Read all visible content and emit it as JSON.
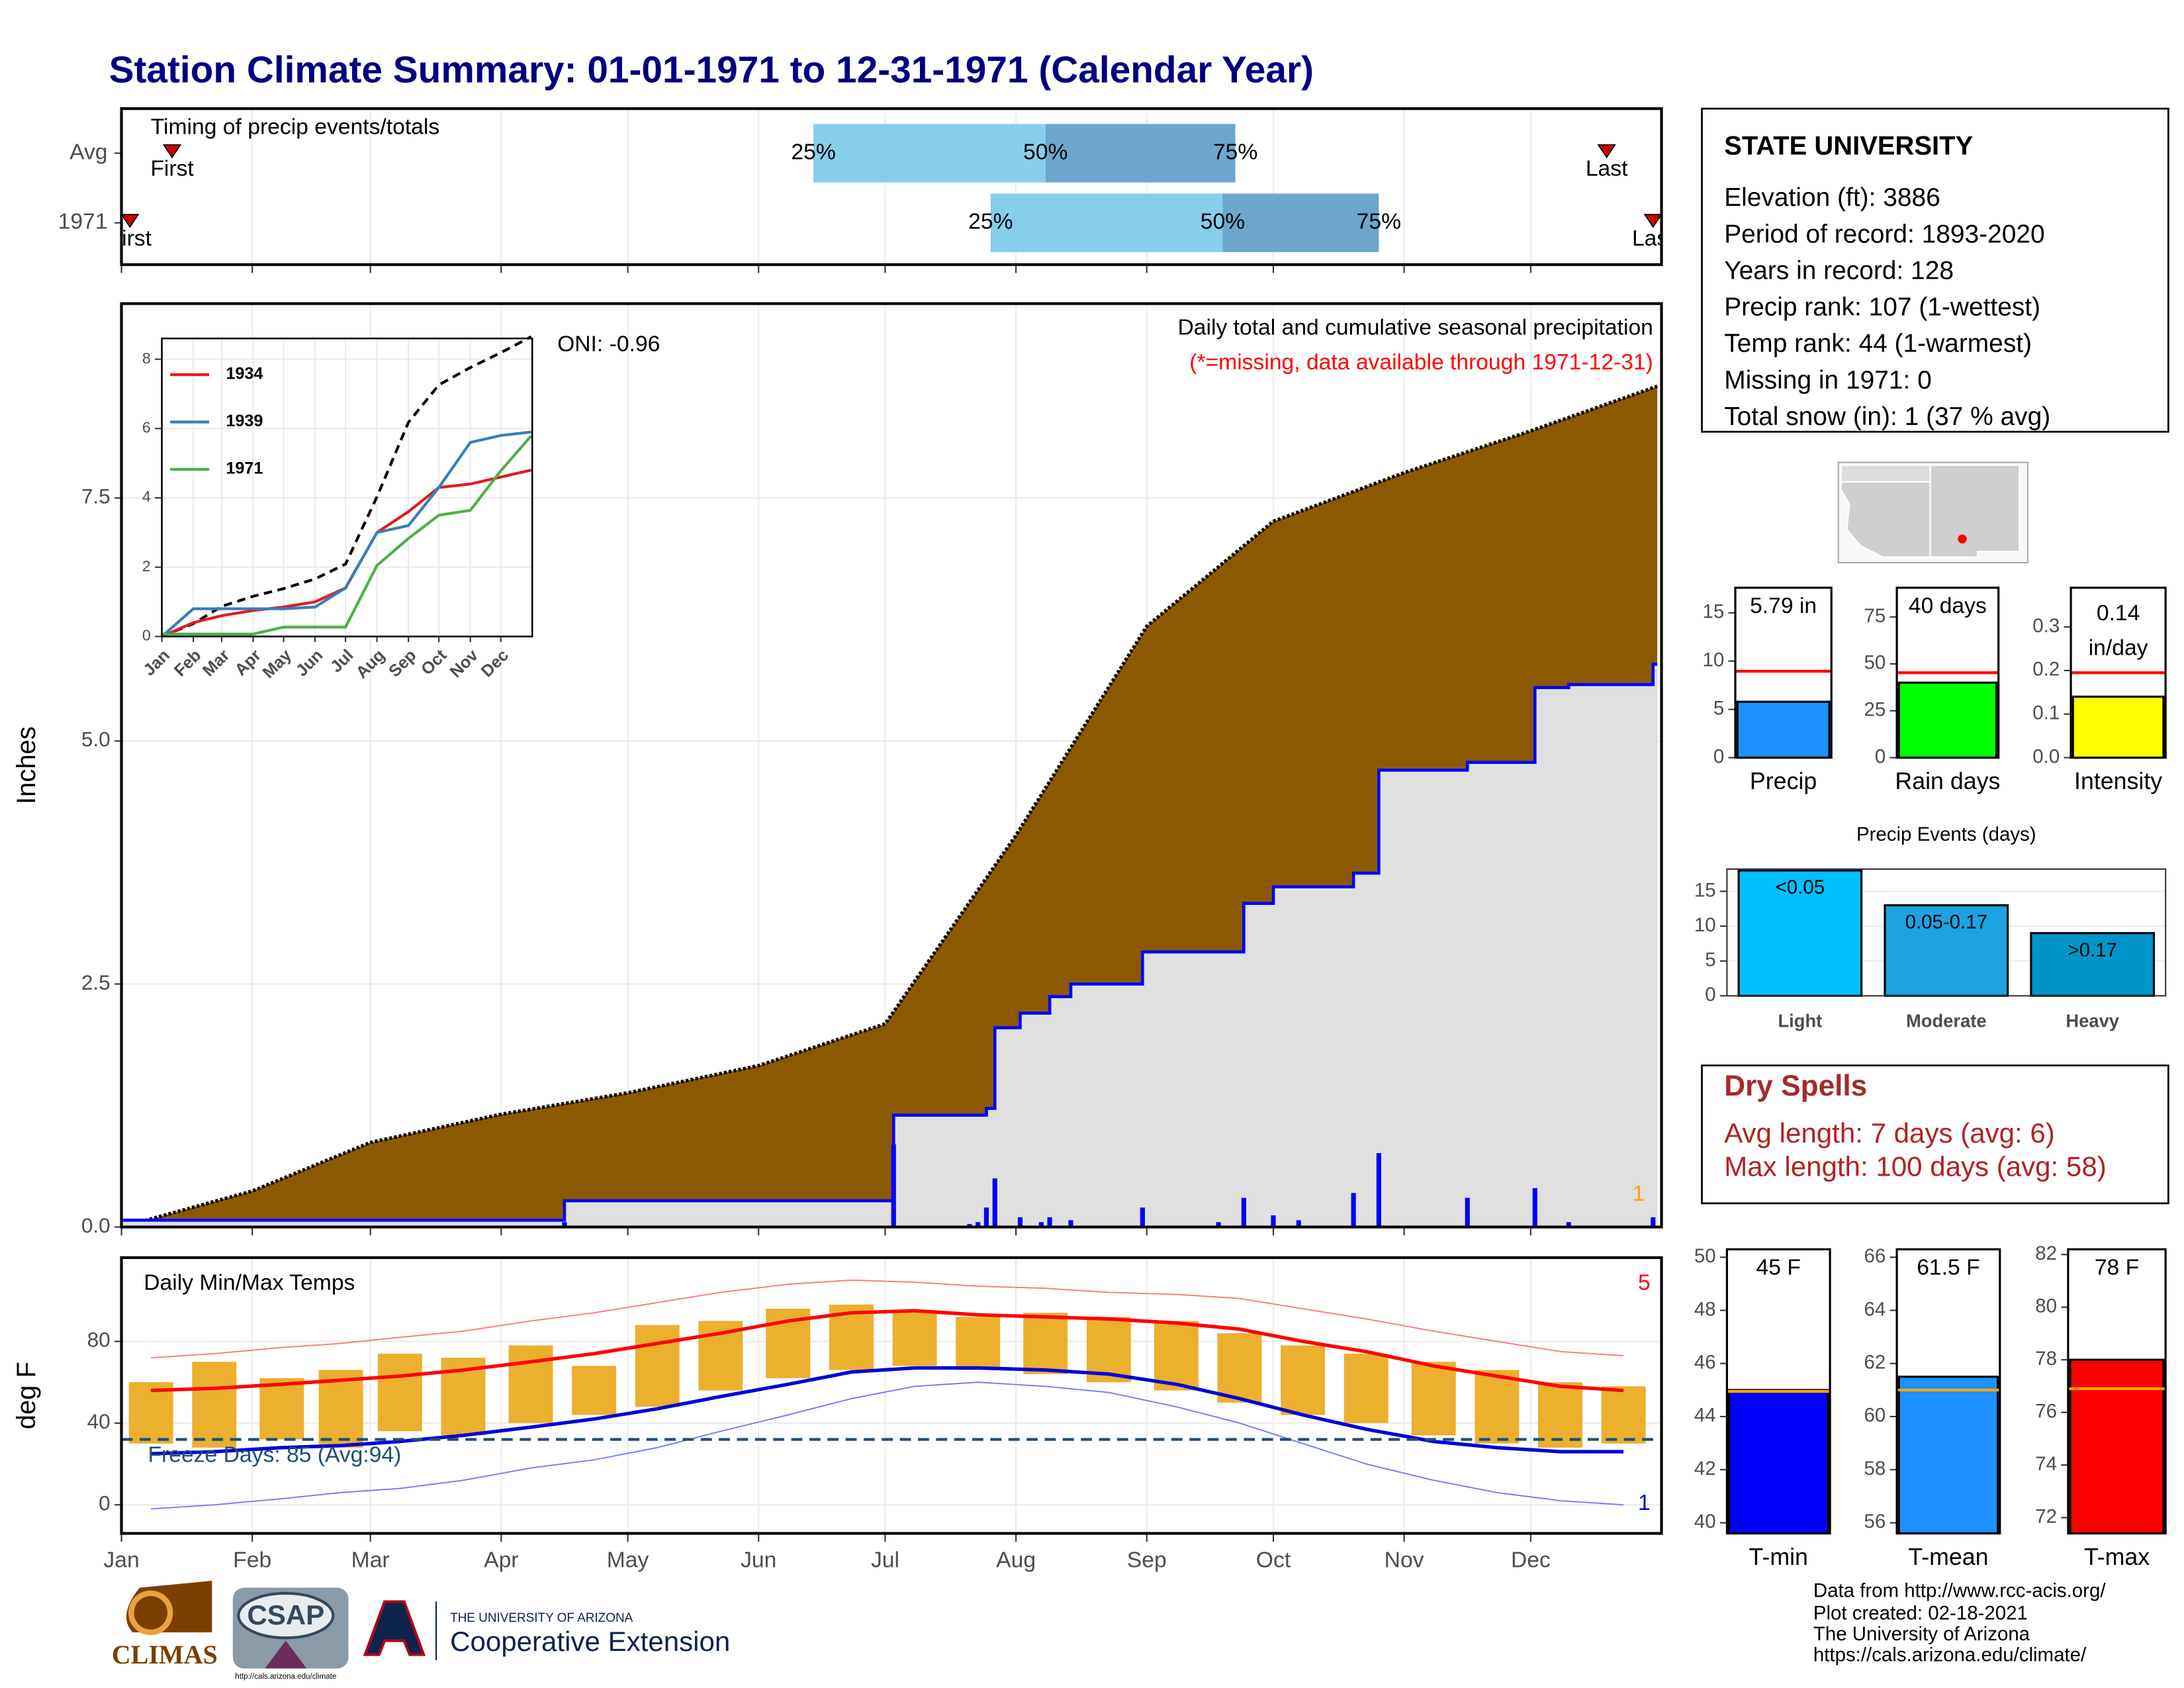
{
  "title": "Station Climate Summary: 01-01-1971 to 12-31-1971 (Calendar Year)",
  "station": {
    "name": "STATE UNIVERSITY",
    "lines": [
      "Elevation (ft): 3886",
      "Period of record: 1893-2020",
      "Years in record: 128",
      "Precip rank: 107 (1-wettest)",
      "Temp rank: 44 (1-warmest)",
      "Missing in 1971: 0",
      "Total snow (in): 1 (37 % avg)"
    ]
  },
  "dry_spells": {
    "title": "Dry Spells",
    "lines": [
      "Avg length: 7 days (avg: 6)",
      "Max length: 100 days (avg: 58)"
    ]
  },
  "footer": {
    "credits": [
      "Data from http://www.rcc-acis.org/",
      "Plot created: 02-18-2021",
      "The University of Arizona",
      "https://cals.arizona.edu/climate/"
    ],
    "logos": [
      "CLIMAS",
      "CSAP",
      "http://cals.arizona.edu/climate",
      "THE UNIVERSITY OF ARIZONA",
      "Cooperative Extension"
    ]
  },
  "chart_data": [
    {
      "type": "timing",
      "title": "Timing of precip events/totals",
      "rows": [
        {
          "name": "Avg",
          "first": 13,
          "q25": 165,
          "q50": 220,
          "q75": 265,
          "last": 353
        },
        {
          "name": "1971",
          "first": 3,
          "q25": 207,
          "q50": 262,
          "q75": 299,
          "last": 364
        }
      ],
      "quantile_labels": [
        "25%",
        "50%",
        "75%"
      ],
      "marker_labels": [
        "First",
        "Last"
      ],
      "colors": [
        "#87CEEB",
        "#6CA6CD",
        "#CC0000"
      ]
    },
    {
      "type": "area",
      "ylabel": "Inches",
      "ylim": [
        0,
        9.5
      ],
      "yticks": [
        {
          "value": 0,
          "label": "0.0"
        },
        2.5,
        {
          "value": 5,
          "label": "5.0"
        },
        7.5
      ],
      "title": "Daily total and cumulative seasonal precipitation",
      "subtitle": "(*=missing, data available through 1971-12-31)",
      "annotation": "ONI: -0.96",
      "record_days": 1,
      "average": {
        "x": [
          1,
          32,
          60,
          91,
          121,
          152,
          182,
          213,
          244,
          274,
          305,
          335,
          365
        ],
        "values": [
          0,
          0.37,
          0.87,
          1.16,
          1.38,
          1.66,
          2.09,
          4.03,
          6.18,
          7.26,
          7.76,
          8.19,
          8.65
        ],
        "color": "#8B5A00"
      },
      "observed": {
        "x": [
          1,
          106,
          106,
          184,
          184,
          206,
          206,
          208,
          208,
          214,
          214,
          221,
          221,
          226,
          226,
          243,
          243,
          267,
          267,
          274,
          274,
          293,
          293,
          299,
          299,
          320,
          320,
          336,
          336,
          344,
          344,
          364,
          364,
          365
        ],
        "values": [
          0.07,
          0.07,
          0.27,
          0.27,
          1.15,
          1.15,
          1.22,
          1.22,
          2.05,
          2.05,
          2.2,
          2.2,
          2.37,
          2.37,
          2.5,
          2.5,
          2.83,
          2.83,
          3.33,
          3.33,
          3.5,
          3.5,
          3.64,
          3.64,
          4.7,
          4.7,
          4.78,
          4.78,
          5.55,
          5.55,
          5.58,
          5.58,
          5.79,
          5.79
        ],
        "color": "#0000FF",
        "fill": "#E0E0E0"
      },
      "daily": {
        "x": [
          106,
          184,
          202,
          204,
          206,
          208,
          214,
          219,
          221,
          226,
          243,
          261,
          267,
          274,
          280,
          293,
          299,
          320,
          336,
          344,
          364
        ],
        "values": [
          0.05,
          0.85,
          0.03,
          0.05,
          0.2,
          0.5,
          0.1,
          0.05,
          0.1,
          0.07,
          0.2,
          0.05,
          0.3,
          0.12,
          0.07,
          0.35,
          0.76,
          0.3,
          0.4,
          0.05,
          0.1
        ],
        "color": "#0000FF"
      }
    },
    {
      "type": "line",
      "xlim": [
        1,
        366
      ],
      "ylim": [
        0,
        8.6
      ],
      "yticks": [
        0,
        2,
        4,
        6,
        8
      ],
      "xticks": [
        {
          "value": 1,
          "label": "Jan"
        },
        {
          "value": 32,
          "label": "Feb"
        },
        {
          "value": 60,
          "label": "Mar"
        },
        {
          "value": 91,
          "label": "Apr"
        },
        {
          "value": 121,
          "label": "May"
        },
        {
          "value": 152,
          "label": "Jun"
        },
        {
          "value": 182,
          "label": "Jul"
        },
        {
          "value": 213,
          "label": "Aug"
        },
        {
          "value": 244,
          "label": "Sep"
        },
        {
          "value": 274,
          "label": "Oct"
        },
        {
          "value": 305,
          "label": "Nov"
        },
        {
          "value": 335,
          "label": "Dec"
        }
      ],
      "x": [
        1,
        32,
        60,
        91,
        121,
        152,
        182,
        213,
        244,
        274,
        305,
        335,
        365
      ],
      "average": {
        "values": [
          0,
          0.37,
          0.87,
          1.16,
          1.38,
          1.66,
          2.09,
          4.03,
          6.18,
          7.26,
          7.76,
          8.19,
          8.65
        ],
        "color": "#000000"
      },
      "series": [
        {
          "name": "1934",
          "color": "#E41A1C",
          "values": [
            0,
            0.4,
            0.6,
            0.75,
            0.85,
            1.0,
            1.4,
            3.0,
            3.6,
            4.3,
            4.4,
            4.6,
            4.8
          ]
        },
        {
          "name": "1939",
          "color": "#377EB8",
          "values": [
            0,
            0.8,
            0.8,
            0.8,
            0.8,
            0.85,
            1.4,
            3.0,
            3.2,
            4.3,
            5.6,
            5.8,
            5.9
          ]
        },
        {
          "name": "1971",
          "color": "#4DAF4A",
          "values": [
            0.07,
            0.07,
            0.07,
            0.07,
            0.27,
            0.27,
            0.27,
            2.05,
            2.83,
            3.5,
            3.64,
            4.78,
            5.79
          ]
        }
      ]
    },
    {
      "type": "temperature",
      "title": "Daily Min/Max Temps",
      "ylabel": "deg F",
      "ylim": [
        -14,
        121
      ],
      "yticks": [
        0,
        40,
        80
      ],
      "xlim": [
        1,
        366
      ],
      "xticks": [
        {
          "value": 1,
          "label": "Jan"
        },
        {
          "value": 32,
          "label": "Feb"
        },
        {
          "value": 60,
          "label": "Mar"
        },
        {
          "value": 91,
          "label": "Apr"
        },
        {
          "value": 121,
          "label": "May"
        },
        {
          "value": 152,
          "label": "Jun"
        },
        {
          "value": 182,
          "label": "Jul"
        },
        {
          "value": 213,
          "label": "Aug"
        },
        {
          "value": 244,
          "label": "Sep"
        },
        {
          "value": 274,
          "label": "Oct"
        },
        {
          "value": 305,
          "label": "Nov"
        },
        {
          "value": 335,
          "label": "Dec"
        }
      ],
      "x": [
        8,
        23,
        39,
        53,
        67,
        82,
        98,
        113,
        128,
        143,
        159,
        174,
        189,
        204,
        220,
        235,
        251,
        266,
        281,
        296,
        312,
        327,
        342,
        357
      ],
      "normal_max": {
        "color": "#FF0000",
        "values": [
          56,
          57,
          59,
          61,
          63,
          66,
          70,
          74,
          79,
          84,
          90,
          94,
          95,
          93,
          92,
          91,
          89,
          86,
          80,
          75,
          68,
          63,
          58,
          56
        ]
      },
      "normal_min": {
        "color": "#0000DD",
        "values": [
          25,
          26,
          28,
          29,
          31,
          34,
          38,
          42,
          47,
          53,
          59,
          65,
          67,
          67,
          66,
          64,
          59,
          52,
          44,
          37,
          31,
          28,
          26,
          26
        ]
      },
      "record_max": {
        "color": "#FF7777",
        "values": [
          72,
          74,
          77,
          79,
          82,
          85,
          90,
          94,
          99,
          104,
          108,
          110,
          109,
          107,
          106,
          104,
          103,
          101,
          96,
          91,
          85,
          80,
          75,
          73
        ]
      },
      "record_min": {
        "color": "#7777FF",
        "values": [
          -2,
          0,
          3,
          6,
          8,
          12,
          18,
          22,
          28,
          36,
          44,
          52,
          58,
          60,
          58,
          55,
          48,
          40,
          30,
          20,
          12,
          6,
          2,
          0
        ]
      },
      "observed": {
        "color": "#EBB02D",
        "max": [
          60,
          70,
          62,
          66,
          74,
          72,
          78,
          68,
          88,
          90,
          96,
          98,
          94,
          92,
          94,
          92,
          90,
          84,
          78,
          74,
          70,
          66,
          60,
          58
        ],
        "min": [
          30,
          28,
          32,
          28,
          36,
          34,
          40,
          44,
          48,
          56,
          62,
          66,
          68,
          66,
          64,
          60,
          56,
          50,
          44,
          40,
          34,
          30,
          28,
          30
        ]
      },
      "freeze_line": {
        "value": 32,
        "label": "Freeze Days: 85 (Avg:94)",
        "color": "#1F4E79"
      },
      "record_high_days": 5,
      "record_low_days": 1
    },
    {
      "type": "bar",
      "categories": [
        "Precip"
      ],
      "values": [
        5.79
      ],
      "value_labels": [
        "5.79 in"
      ],
      "color": "#1E90FF",
      "average": 8.95,
      "average_color": "#FF0000",
      "ylim": [
        0,
        17.6
      ],
      "yticks": [
        0,
        5,
        10,
        15
      ]
    },
    {
      "type": "bar",
      "categories": [
        "Rain days"
      ],
      "values": [
        40
      ],
      "value_labels": [
        "40 days"
      ],
      "color": "#00FF00",
      "average": 45.3,
      "average_color": "#FF0000",
      "ylim": [
        0,
        90.6
      ],
      "yticks": [
        0,
        25,
        50,
        75
      ]
    },
    {
      "type": "bar",
      "categories": [
        "Intensity"
      ],
      "values": [
        0.14
      ],
      "value_labels": [
        "0.14 in/day"
      ],
      "color": "#FFFF00",
      "average": 0.195,
      "average_color": "#FF0000",
      "ylim": [
        0,
        0.39
      ],
      "yticks": [
        {
          "value": 0,
          "label": "0.0"
        },
        0.1,
        0.2,
        0.3
      ]
    },
    {
      "type": "bar",
      "title": "Precip Events (days)",
      "categories": [
        "Light",
        "Moderate",
        "Heavy"
      ],
      "values": [
        18,
        13,
        9
      ],
      "bar_labels": [
        "<0.05",
        "0.05-0.17",
        ">0.17"
      ],
      "colors": [
        "#00BFFF",
        "#1CA3E0",
        "#0095C8"
      ],
      "ylim": [
        0,
        18.2
      ],
      "yticks": [
        0,
        5,
        10,
        15
      ],
      "grid": true
    },
    {
      "type": "bar",
      "categories": [
        "T-min"
      ],
      "values": [
        45
      ],
      "value_labels": [
        "45 F"
      ],
      "color": "#0000FF",
      "average": 44.95,
      "average_color": "#FFA500",
      "ylim": [
        39.6,
        50.3
      ],
      "yticks": [
        40,
        42,
        44,
        46,
        48,
        50
      ]
    },
    {
      "type": "bar",
      "categories": [
        "T-mean"
      ],
      "values": [
        61.5
      ],
      "value_labels": [
        "61.5 F"
      ],
      "color": "#1E90FF",
      "average": 61.0,
      "average_color": "#FFA500",
      "ylim": [
        55.6,
        66.3
      ],
      "yticks": [
        56,
        58,
        60,
        62,
        64,
        66
      ]
    },
    {
      "type": "bar",
      "categories": [
        "T-max"
      ],
      "values": [
        78
      ],
      "value_labels": [
        "78 F"
      ],
      "color": "#FF0000",
      "average": 76.9,
      "average_color": "#FFA500",
      "ylim": [
        71.4,
        82.2
      ],
      "yticks": [
        72,
        74,
        76,
        78,
        80,
        82
      ]
    }
  ]
}
